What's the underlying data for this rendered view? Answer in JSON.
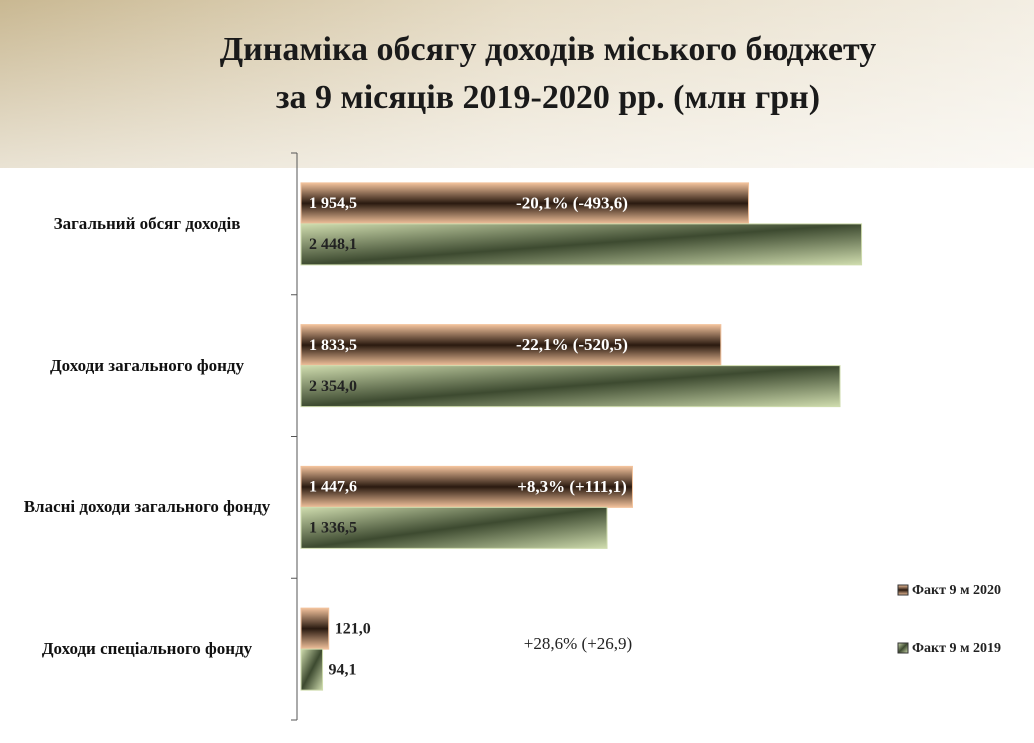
{
  "chart_data": {
    "type": "bar",
    "orientation": "horizontal",
    "title": "Динаміка обсягу доходів міського бюджету",
    "subtitle": "за 9 місяців 2019-2020 рр. (млн грн)",
    "categories": [
      "Загальний обсяг доходів",
      "Доходи загального фонду",
      "Власні доходи загального фонду",
      "Доходи спеціального фонду"
    ],
    "series": [
      {
        "name": "Факт 9 м 2020",
        "color": "#f2c29c",
        "values": [
          1954.5,
          1833.5,
          1447.6,
          121.0
        ],
        "value_labels": [
          "1 954,5",
          "1 833,5",
          "1 447,6",
          "121,0"
        ]
      },
      {
        "name": "Факт 9 м 2019",
        "color": "#cfdcae",
        "values": [
          2448.1,
          2354.0,
          1336.5,
          94.1
        ],
        "value_labels": [
          "2 448,1",
          "2 354,0",
          "1 336,5",
          "94,1"
        ]
      }
    ],
    "annotations": [
      "-20,1% (-493,6)",
      "-22,1% (-520,5)",
      "+8,3% (+111,1)",
      "+28,6% (+26,9)"
    ],
    "xlim": [
      0,
      2450
    ],
    "legend": "right"
  }
}
